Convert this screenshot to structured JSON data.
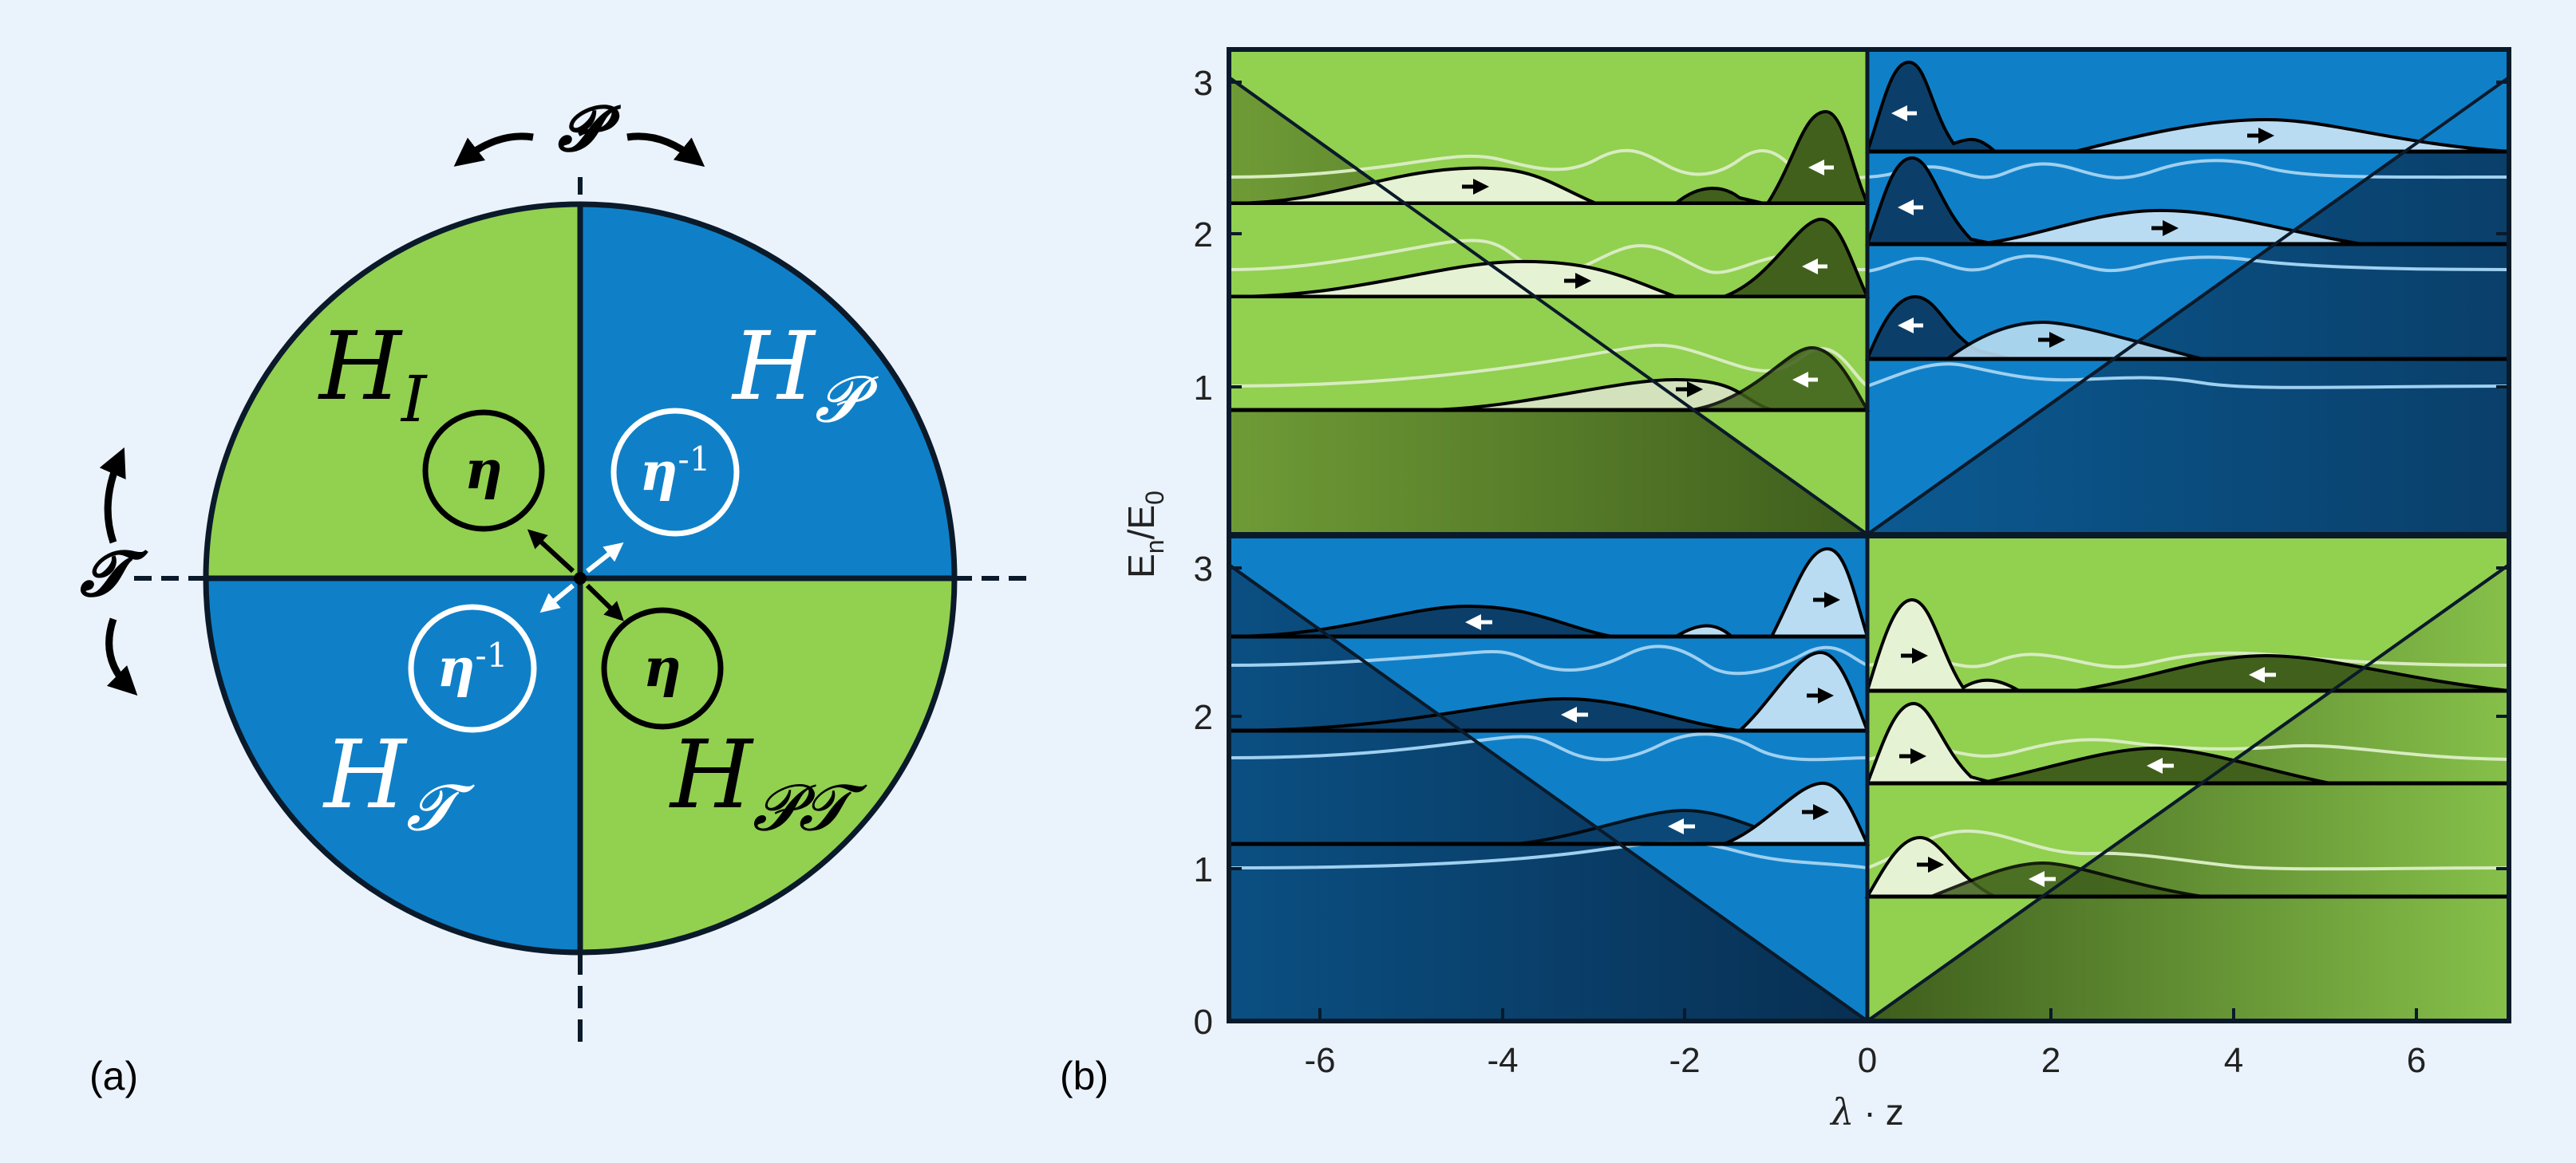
{
  "colors": {
    "background": "#eaf2fb",
    "green": "#92d050",
    "blue": "#0f80c8",
    "dark_green": "#40601c",
    "dark_blue": "#083a62",
    "outline": "#0a1a2a",
    "white": "#ffffff"
  },
  "panel_a": {
    "label": "(a)",
    "symbol_P": "𝓟",
    "symbol_T": "𝓣",
    "quadrants": {
      "top_left": {
        "letter": "H",
        "sub": "I"
      },
      "top_right": {
        "letter": "H",
        "sub": "𝓟"
      },
      "bottom_left": {
        "letter": "H",
        "sub": "𝓣"
      },
      "bottom_right": {
        "letter": "H",
        "sub": "𝓟𝓣"
      }
    },
    "eta": "η",
    "eta_inv_exp": "-1"
  },
  "panel_b": {
    "label": "(b)",
    "xlabel_lambda": "λ",
    "xlabel_dot": "·",
    "xlabel_z": "z",
    "ylabel_E": "E",
    "ylabel_n": "n",
    "ylabel_slash": "/E",
    "ylabel_0": "0",
    "x_ticks": [
      "-6",
      "-4",
      "-2",
      "0",
      "2",
      "4",
      "6"
    ],
    "y_ticks_top": [
      "1",
      "2",
      "3"
    ],
    "y_ticks_bottom": [
      "0",
      "1",
      "2",
      "3"
    ]
  }
}
